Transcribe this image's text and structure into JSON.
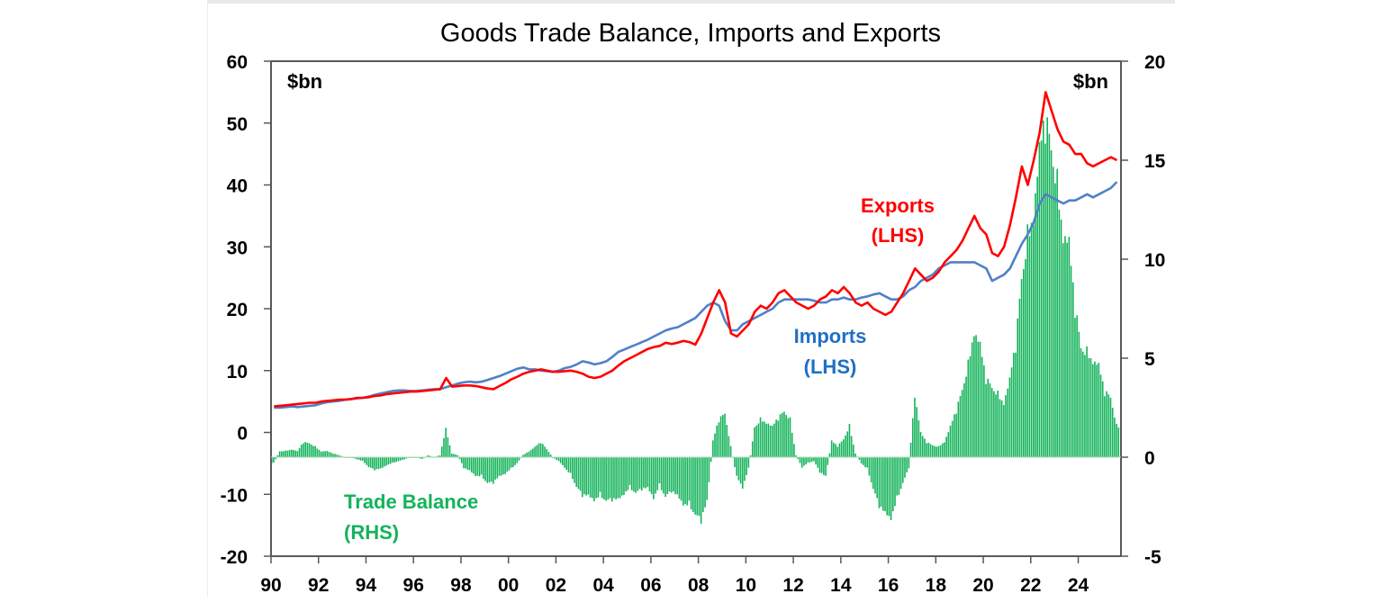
{
  "chart_data": {
    "type": "line+bar",
    "title": "Goods Trade Balance, Imports and Exports",
    "left_axis": {
      "unit_label": "$bn",
      "range": [
        -20,
        60
      ],
      "ticks": [
        "60",
        "50",
        "40",
        "30",
        "20",
        "10",
        "0",
        "-10",
        "-20"
      ]
    },
    "right_axis": {
      "unit_label": "$bn",
      "range": [
        -5,
        20
      ],
      "ticks": [
        "20",
        "15",
        "10",
        "5",
        "0",
        "-5"
      ]
    },
    "x_axis": {
      "range": [
        1990,
        2025.8
      ],
      "ticks": [
        "90",
        "92",
        "94",
        "96",
        "98",
        "00",
        "02",
        "04",
        "06",
        "08",
        "10",
        "12",
        "14",
        "16",
        "18",
        "20",
        "22",
        "24"
      ]
    },
    "frequency": "quarterly (approximate reading)",
    "start": "1990-Q1",
    "series": [
      {
        "name": "Exports (LHS)",
        "label_line1": "Exports",
        "label_line2": "(LHS)",
        "axis": "left",
        "kind": "line",
        "color": "#ff0000",
        "values": [
          4.2,
          4.3,
          4.4,
          4.5,
          4.6,
          4.7,
          4.8,
          4.8,
          5.0,
          5.1,
          5.2,
          5.3,
          5.3,
          5.4,
          5.6,
          5.6,
          5.7,
          5.9,
          6.0,
          6.2,
          6.3,
          6.4,
          6.5,
          6.6,
          6.6,
          6.7,
          6.8,
          6.9,
          7.0,
          8.8,
          7.4,
          7.5,
          7.6,
          7.6,
          7.5,
          7.3,
          7.1,
          7.0,
          7.5,
          8.0,
          8.6,
          9.0,
          9.5,
          9.8,
          10.0,
          10.2,
          10.0,
          9.8,
          9.8,
          9.9,
          10.0,
          9.8,
          9.5,
          9.0,
          8.8,
          9.0,
          9.5,
          10.0,
          10.8,
          11.5,
          12.0,
          12.5,
          13.0,
          13.5,
          13.8,
          14.0,
          14.5,
          14.3,
          14.5,
          14.8,
          14.6,
          14.2,
          16.0,
          18.5,
          21.0,
          23.0,
          21.0,
          16.0,
          15.5,
          16.5,
          17.5,
          19.5,
          20.5,
          20.0,
          21.0,
          22.5,
          23.0,
          22.0,
          21.0,
          20.5,
          20.0,
          20.5,
          21.5,
          22.0,
          23.0,
          22.5,
          23.5,
          22.5,
          21.0,
          20.5,
          21.0,
          20.0,
          19.5,
          19.0,
          19.5,
          21.0,
          22.5,
          24.5,
          26.5,
          25.5,
          24.5,
          25.0,
          26.0,
          27.5,
          28.5,
          29.5,
          31.0,
          33.0,
          35.0,
          33.0,
          32.0,
          29.0,
          28.5,
          30.0,
          33.5,
          38.0,
          43.0,
          40.0,
          44.0,
          48.5,
          55.0,
          52.0,
          49.0,
          47.0,
          46.5,
          45.0,
          45.0,
          43.5,
          43.0,
          43.5,
          44.0,
          44.5,
          44.0
        ]
      },
      {
        "name": "Imports (LHS)",
        "label_line1": "Imports",
        "label_line2": "(LHS)",
        "axis": "left",
        "kind": "line",
        "color": "#4f81c7",
        "values": [
          4.0,
          4.0,
          4.1,
          4.2,
          4.1,
          4.2,
          4.3,
          4.4,
          4.7,
          4.9,
          5.0,
          5.1,
          5.3,
          5.4,
          5.5,
          5.6,
          5.8,
          6.1,
          6.3,
          6.5,
          6.7,
          6.8,
          6.8,
          6.7,
          6.7,
          6.8,
          6.9,
          7.0,
          7.0,
          7.3,
          7.6,
          7.9,
          8.1,
          8.2,
          8.1,
          8.2,
          8.5,
          8.8,
          9.1,
          9.5,
          9.9,
          10.3,
          10.5,
          10.2,
          10.2,
          10.0,
          9.9,
          9.8,
          10.0,
          10.4,
          10.6,
          11.0,
          11.5,
          11.3,
          11.0,
          11.2,
          11.5,
          12.2,
          13.0,
          13.4,
          13.8,
          14.2,
          14.6,
          15.0,
          15.5,
          16.0,
          16.5,
          16.8,
          17.0,
          17.5,
          18.0,
          18.5,
          19.5,
          20.5,
          21.0,
          20.5,
          18.0,
          16.5,
          16.5,
          17.5,
          18.0,
          18.5,
          19.0,
          19.5,
          20.0,
          21.0,
          21.5,
          21.5,
          21.5,
          21.5,
          21.5,
          21.3,
          21.0,
          21.0,
          21.5,
          21.5,
          21.8,
          21.5,
          21.5,
          21.8,
          22.0,
          22.3,
          22.5,
          22.0,
          21.5,
          21.5,
          22.0,
          23.0,
          23.5,
          24.5,
          25.0,
          25.5,
          26.5,
          27.0,
          27.5,
          27.5,
          27.5,
          27.5,
          27.5,
          27.0,
          26.5,
          24.5,
          25.0,
          25.5,
          26.5,
          28.5,
          30.5,
          32.0,
          34.0,
          37.0,
          38.5,
          38.0,
          37.5,
          37.0,
          37.5,
          37.5,
          38.0,
          38.5,
          38.0,
          38.5,
          39.0,
          39.5,
          40.5
        ]
      },
      {
        "name": "Trade Balance (RHS)",
        "label_line1": "Trade Balance",
        "label_line2": "(RHS)",
        "axis": "right",
        "kind": "bar",
        "color": "#13b35a",
        "values": [
          -0.3,
          0.3,
          0.3,
          0.4,
          0.3,
          0.8,
          0.7,
          0.5,
          0.3,
          0.3,
          0.2,
          0.1,
          0.0,
          0.0,
          -0.1,
          -0.2,
          -0.5,
          -0.6,
          -0.6,
          -0.4,
          -0.3,
          -0.2,
          -0.1,
          0.0,
          0.0,
          -0.1,
          0.1,
          0.0,
          0.1,
          1.4,
          0.2,
          0.1,
          -0.5,
          -0.7,
          -0.9,
          -1.0,
          -1.3,
          -1.2,
          -1.0,
          -0.8,
          -0.6,
          -0.3,
          0.1,
          0.3,
          0.5,
          0.8,
          0.4,
          0.0,
          -0.2,
          -0.5,
          -0.9,
          -1.5,
          -1.8,
          -2.0,
          -2.1,
          -2.0,
          -2.2,
          -2.0,
          -2.2,
          -1.8,
          -1.6,
          -1.8,
          -1.5,
          -1.6,
          -2.0,
          -1.5,
          -2.0,
          -1.6,
          -2.0,
          -2.3,
          -2.5,
          -2.9,
          -3.0,
          -2.3,
          0.8,
          2.0,
          2.2,
          0.5,
          -1.0,
          -1.5,
          -0.6,
          1.5,
          1.8,
          1.8,
          1.5,
          2.1,
          2.3,
          1.8,
          0.1,
          -0.5,
          -0.3,
          -0.2,
          -0.7,
          -1.0,
          0.8,
          0.6,
          0.9,
          1.5,
          0.2,
          -0.3,
          -0.6,
          -1.6,
          -2.3,
          -2.9,
          -3.0,
          -2.2,
          -1.3,
          -0.5,
          3.2,
          1.2,
          0.8,
          0.6,
          0.5,
          0.8,
          1.5,
          2.5,
          3.4,
          4.4,
          6.5,
          5.5,
          4.2,
          3.5,
          3.0,
          2.8,
          3.8,
          6.0,
          9.0,
          10.5,
          12.5,
          15.0,
          18.0,
          15.5,
          13.0,
          11.5,
          10.5,
          8.0,
          5.5,
          5.0,
          5.0,
          4.5,
          3.5,
          3.0,
          1.5
        ]
      }
    ],
    "grid": false,
    "legend": "inline labels"
  },
  "colors": {
    "exports": "#ff0000",
    "imports": "#4f81c7",
    "trade_balance": "#13b35a",
    "axis": "#595959"
  }
}
